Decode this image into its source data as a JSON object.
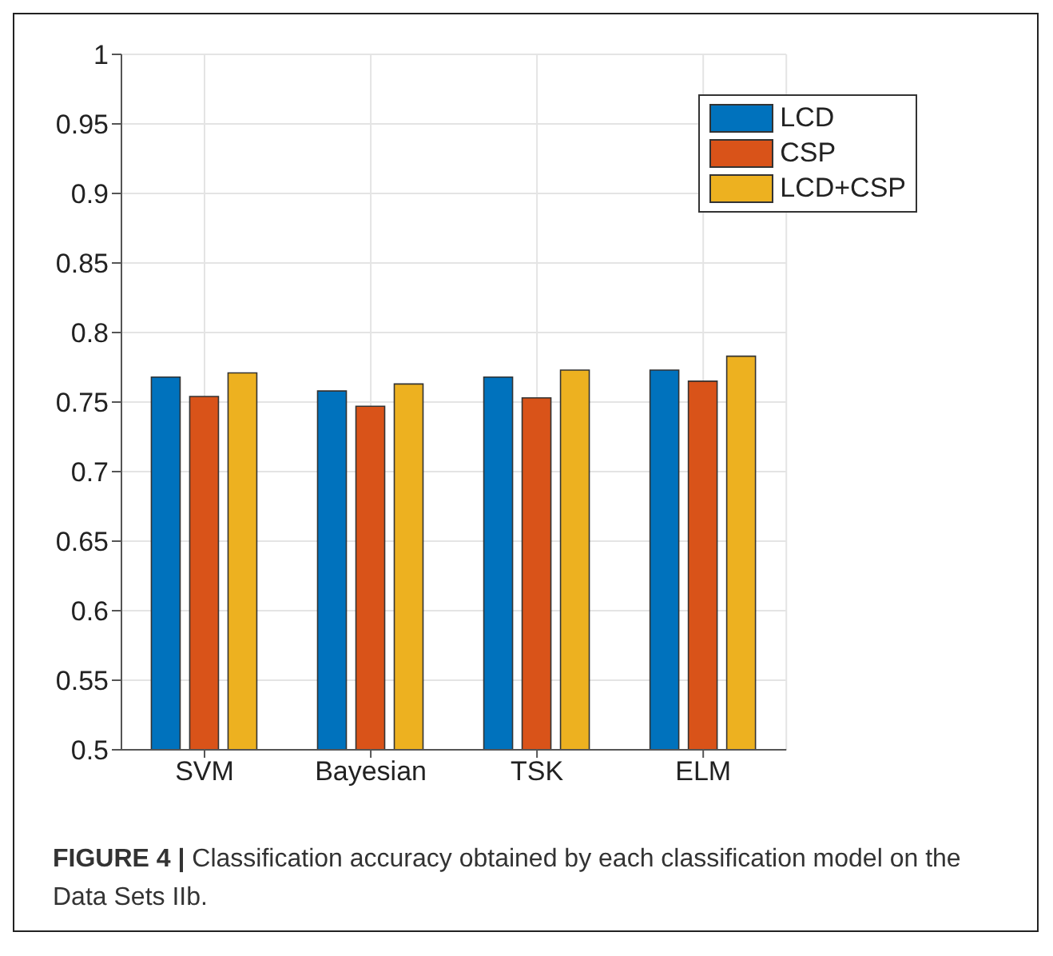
{
  "chart_data": {
    "type": "bar",
    "categories": [
      "SVM",
      "Bayesian",
      "TSK",
      "ELM"
    ],
    "series": [
      {
        "name": "LCD",
        "color": "#0072bd",
        "values": [
          0.768,
          0.758,
          0.768,
          0.773
        ]
      },
      {
        "name": "CSP",
        "color": "#d95319",
        "values": [
          0.754,
          0.747,
          0.753,
          0.765
        ]
      },
      {
        "name": "LCD+CSP",
        "color": "#edb120",
        "values": [
          0.771,
          0.763,
          0.773,
          0.783
        ]
      }
    ],
    "ylim": [
      0.5,
      1
    ],
    "yticks": [
      0.5,
      0.55,
      0.6,
      0.65,
      0.7,
      0.75,
      0.8,
      0.85,
      0.9,
      0.95,
      1
    ],
    "grid": true,
    "legend": "top right",
    "annotations": [
      "FIGURE 4 | Classification accuracy obtained by each classification model on the Data Sets IIb."
    ]
  }
}
